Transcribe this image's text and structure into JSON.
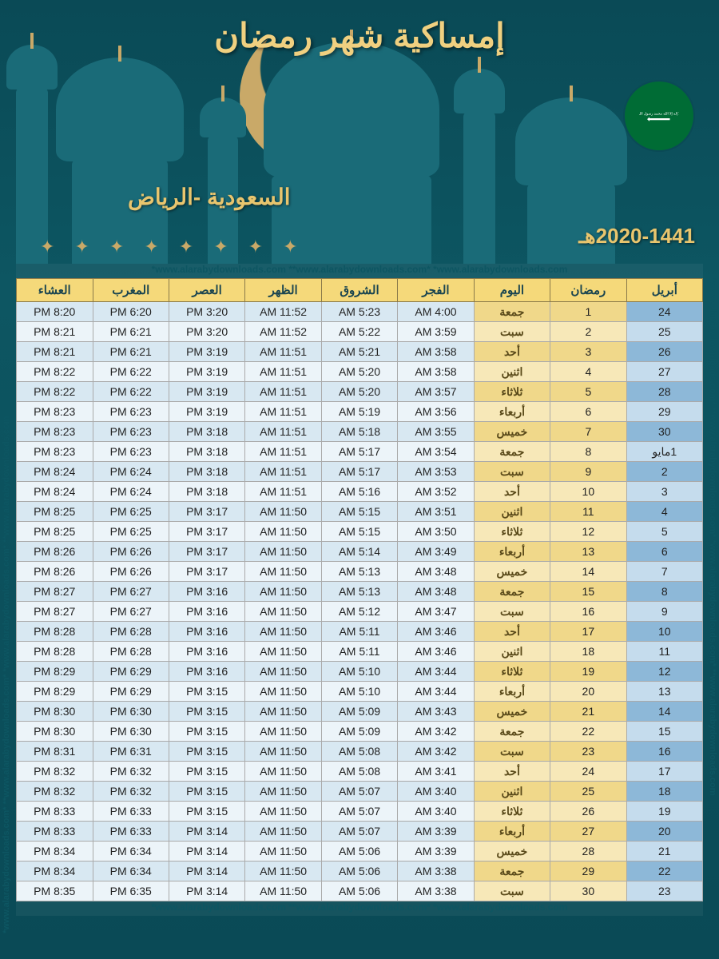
{
  "header": {
    "title": "إمساكية شهر رمضان",
    "location": "السعودية -الرياض",
    "year": "2020-1441هـ",
    "flag_text": "لا إله إلا الله محمد رسول الله"
  },
  "watermark": "*www.alarabydownloads.com **www.alarabydownloads.com* *www.alarabydownloads.com",
  "watermark_side": "*www.alarabydownloads.com* **www.alarabydownloads.com* *www.alarabydownloads.com* **www.alarabydownloads.com",
  "columns": [
    "أبريل",
    "رمضان",
    "اليوم",
    "الفجر",
    "الشروق",
    "الظهر",
    "العصر",
    "المغرب",
    "العشاء"
  ],
  "colors": {
    "bg_teal": "#0d5662",
    "accent_gold": "#e8c56e",
    "header_yellow": "#f5d97a",
    "blue_dark": "#8db8d8",
    "blue_light": "#c5dced",
    "yellow_dark": "#f0d88a",
    "yellow_light": "#f7e8b8",
    "prayer_a": "#d8e8f2",
    "prayer_b": "#ecf4f9"
  },
  "rows": [
    {
      "g": "24",
      "r": "1",
      "d": "جمعة",
      "f": "4:00 AM",
      "sh": "5:23 AM",
      "dh": "11:52 AM",
      "a": "3:20 PM",
      "m": "6:20 PM",
      "i": "8:20 PM"
    },
    {
      "g": "25",
      "r": "2",
      "d": "سبت",
      "f": "3:59 AM",
      "sh": "5:22 AM",
      "dh": "11:52 AM",
      "a": "3:20 PM",
      "m": "6:21 PM",
      "i": "8:21 PM"
    },
    {
      "g": "26",
      "r": "3",
      "d": "أحد",
      "f": "3:58 AM",
      "sh": "5:21 AM",
      "dh": "11:51 AM",
      "a": "3:19 PM",
      "m": "6:21 PM",
      "i": "8:21 PM"
    },
    {
      "g": "27",
      "r": "4",
      "d": "اثنين",
      "f": "3:58 AM",
      "sh": "5:20 AM",
      "dh": "11:51 AM",
      "a": "3:19 PM",
      "m": "6:22 PM",
      "i": "8:22 PM"
    },
    {
      "g": "28",
      "r": "5",
      "d": "ثلاثاء",
      "f": "3:57 AM",
      "sh": "5:20 AM",
      "dh": "11:51 AM",
      "a": "3:19 PM",
      "m": "6:22 PM",
      "i": "8:22 PM"
    },
    {
      "g": "29",
      "r": "6",
      "d": "أربعاء",
      "f": "3:56 AM",
      "sh": "5:19 AM",
      "dh": "11:51 AM",
      "a": "3:19 PM",
      "m": "6:23 PM",
      "i": "8:23 PM"
    },
    {
      "g": "30",
      "r": "7",
      "d": "خميس",
      "f": "3:55 AM",
      "sh": "5:18 AM",
      "dh": "11:51 AM",
      "a": "3:18 PM",
      "m": "6:23 PM",
      "i": "8:23 PM"
    },
    {
      "g": "1مايو",
      "r": "8",
      "d": "جمعة",
      "f": "3:54 AM",
      "sh": "5:17 AM",
      "dh": "11:51 AM",
      "a": "3:18 PM",
      "m": "6:23 PM",
      "i": "8:23 PM"
    },
    {
      "g": "2",
      "r": "9",
      "d": "سبت",
      "f": "3:53 AM",
      "sh": "5:17 AM",
      "dh": "11:51 AM",
      "a": "3:18 PM",
      "m": "6:24 PM",
      "i": "8:24 PM"
    },
    {
      "g": "3",
      "r": "10",
      "d": "أحد",
      "f": "3:52 AM",
      "sh": "5:16 AM",
      "dh": "11:51 AM",
      "a": "3:18 PM",
      "m": "6:24 PM",
      "i": "8:24 PM"
    },
    {
      "g": "4",
      "r": "11",
      "d": "اثنين",
      "f": "3:51 AM",
      "sh": "5:15 AM",
      "dh": "11:50 AM",
      "a": "3:17 PM",
      "m": "6:25 PM",
      "i": "8:25 PM"
    },
    {
      "g": "5",
      "r": "12",
      "d": "ثلاثاء",
      "f": "3:50 AM",
      "sh": "5:15 AM",
      "dh": "11:50 AM",
      "a": "3:17 PM",
      "m": "6:25 PM",
      "i": "8:25 PM"
    },
    {
      "g": "6",
      "r": "13",
      "d": "أربعاء",
      "f": "3:49 AM",
      "sh": "5:14 AM",
      "dh": "11:50 AM",
      "a": "3:17 PM",
      "m": "6:26 PM",
      "i": "8:26 PM"
    },
    {
      "g": "7",
      "r": "14",
      "d": "خميس",
      "f": "3:48 AM",
      "sh": "5:13 AM",
      "dh": "11:50 AM",
      "a": "3:17 PM",
      "m": "6:26 PM",
      "i": "8:26 PM"
    },
    {
      "g": "8",
      "r": "15",
      "d": "جمعة",
      "f": "3:48 AM",
      "sh": "5:13 AM",
      "dh": "11:50 AM",
      "a": "3:16 PM",
      "m": "6:27 PM",
      "i": "8:27 PM"
    },
    {
      "g": "9",
      "r": "16",
      "d": "سبت",
      "f": "3:47 AM",
      "sh": "5:12 AM",
      "dh": "11:50 AM",
      "a": "3:16 PM",
      "m": "6:27 PM",
      "i": "8:27 PM"
    },
    {
      "g": "10",
      "r": "17",
      "d": "أحد",
      "f": "3:46 AM",
      "sh": "5:11 AM",
      "dh": "11:50 AM",
      "a": "3:16 PM",
      "m": "6:28 PM",
      "i": "8:28 PM"
    },
    {
      "g": "11",
      "r": "18",
      "d": "اثنين",
      "f": "3:46 AM",
      "sh": "5:11 AM",
      "dh": "11:50 AM",
      "a": "3:16 PM",
      "m": "6:28 PM",
      "i": "8:28 PM"
    },
    {
      "g": "12",
      "r": "19",
      "d": "ثلاثاء",
      "f": "3:44 AM",
      "sh": "5:10 AM",
      "dh": "11:50 AM",
      "a": "3:16 PM",
      "m": "6:29 PM",
      "i": "8:29 PM"
    },
    {
      "g": "13",
      "r": "20",
      "d": "أربعاء",
      "f": "3:44 AM",
      "sh": "5:10 AM",
      "dh": "11:50 AM",
      "a": "3:15 PM",
      "m": "6:29 PM",
      "i": "8:29 PM"
    },
    {
      "g": "14",
      "r": "21",
      "d": "خميس",
      "f": "3:43 AM",
      "sh": "5:09 AM",
      "dh": "11:50 AM",
      "a": "3:15 PM",
      "m": "6:30 PM",
      "i": "8:30 PM"
    },
    {
      "g": "15",
      "r": "22",
      "d": "جمعة",
      "f": "3:42 AM",
      "sh": "5:09 AM",
      "dh": "11:50 AM",
      "a": "3:15 PM",
      "m": "6:30 PM",
      "i": "8:30 PM"
    },
    {
      "g": "16",
      "r": "23",
      "d": "سبت",
      "f": "3:42 AM",
      "sh": "5:08 AM",
      "dh": "11:50 AM",
      "a": "3:15 PM",
      "m": "6:31 PM",
      "i": "8:31 PM"
    },
    {
      "g": "17",
      "r": "24",
      "d": "أحد",
      "f": "3:41 AM",
      "sh": "5:08 AM",
      "dh": "11:50 AM",
      "a": "3:15 PM",
      "m": "6:32 PM",
      "i": "8:32 PM"
    },
    {
      "g": "18",
      "r": "25",
      "d": "اثنين",
      "f": "3:40 AM",
      "sh": "5:07 AM",
      "dh": "11:50 AM",
      "a": "3:15 PM",
      "m": "6:32 PM",
      "i": "8:32 PM"
    },
    {
      "g": "19",
      "r": "26",
      "d": "ثلاثاء",
      "f": "3:40 AM",
      "sh": "5:07 AM",
      "dh": "11:50 AM",
      "a": "3:15 PM",
      "m": "6:33 PM",
      "i": "8:33 PM"
    },
    {
      "g": "20",
      "r": "27",
      "d": "أربعاء",
      "f": "3:39 AM",
      "sh": "5:07 AM",
      "dh": "11:50 AM",
      "a": "3:14 PM",
      "m": "6:33 PM",
      "i": "8:33 PM"
    },
    {
      "g": "21",
      "r": "28",
      "d": "خميس",
      "f": "3:39 AM",
      "sh": "5:06 AM",
      "dh": "11:50 AM",
      "a": "3:14 PM",
      "m": "6:34 PM",
      "i": "8:34 PM"
    },
    {
      "g": "22",
      "r": "29",
      "d": "جمعة",
      "f": "3:38 AM",
      "sh": "5:06 AM",
      "dh": "11:50 AM",
      "a": "3:14 PM",
      "m": "6:34 PM",
      "i": "8:34 PM"
    },
    {
      "g": "23",
      "r": "30",
      "d": "سبت",
      "f": "3:38 AM",
      "sh": "5:06 AM",
      "dh": "11:50 AM",
      "a": "3:14 PM",
      "m": "6:35 PM",
      "i": "8:35 PM"
    }
  ]
}
